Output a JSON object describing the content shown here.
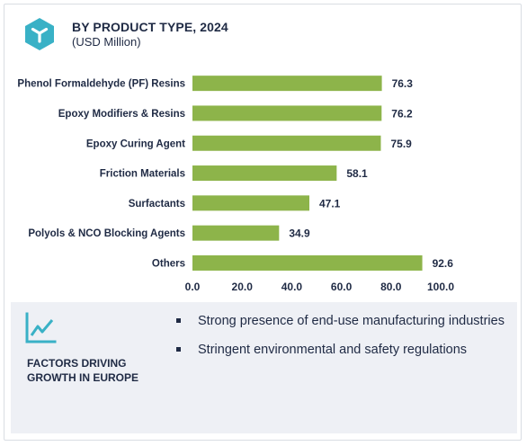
{
  "header": {
    "title": "BY PRODUCT TYPE, 2024",
    "subtitle": "(USD Million)"
  },
  "icons": {
    "logo": "hexagon-logo-icon",
    "trend": "trend-line-icon",
    "bullet": "square-bullet-icon"
  },
  "colors": {
    "bar": "#8db44a",
    "text": "#1f2a44",
    "panel": "#eef0f5",
    "logo": "#39b1c6"
  },
  "chart_data": {
    "type": "bar",
    "orientation": "horizontal",
    "title": "BY PRODUCT TYPE, 2024",
    "subtitle": "(USD Million)",
    "categories": [
      "Phenol Formaldehyde (PF) Resins",
      "Epoxy Modifiers & Resins",
      "Epoxy Curing Agent",
      "Friction Materials",
      "Surfactants",
      "Polyols & NCO Blocking Agents",
      "Others"
    ],
    "values": [
      76.3,
      76.2,
      75.9,
      58.1,
      47.1,
      34.9,
      92.6
    ],
    "value_labels": [
      "76.3",
      "76.2",
      "75.9",
      "58.1",
      "47.1",
      "34.9",
      "92.6"
    ],
    "xlim": [
      0,
      100
    ],
    "xticks": [
      "0.0",
      "20.0",
      "40.0",
      "60.0",
      "80.0",
      "100.0"
    ],
    "grid": false,
    "legend": "none"
  },
  "factors": {
    "title": "FACTORS DRIVING GROWTH IN EUROPE",
    "bullets": [
      "Strong presence of end-use manufacturing industries",
      "Stringent environmental and safety regulations"
    ]
  }
}
